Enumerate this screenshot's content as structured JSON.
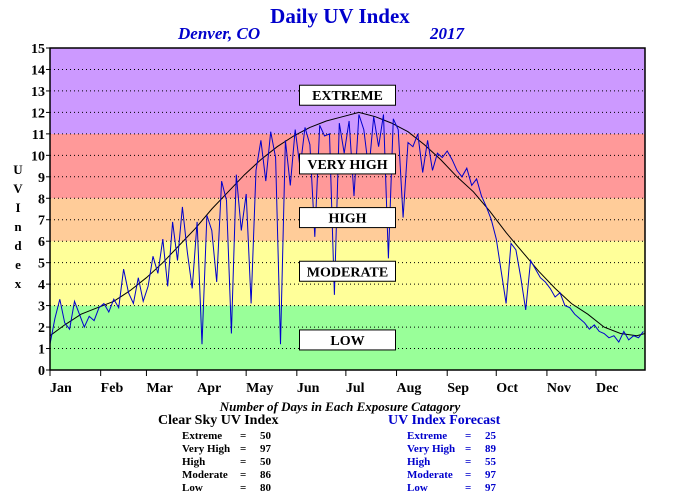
{
  "chart_data": {
    "type": "line",
    "title": "Daily UV Index",
    "subtitle_left": "Denver, CO",
    "subtitle_right": "2017",
    "ylabel": "UV Index",
    "ylim": [
      0,
      15
    ],
    "yticks": [
      0,
      1,
      2,
      3,
      4,
      5,
      6,
      7,
      8,
      9,
      10,
      11,
      12,
      13,
      14,
      15
    ],
    "xlim": [
      1,
      365
    ],
    "month_labels": [
      "Jan",
      "Feb",
      "Mar",
      "Apr",
      "May",
      "Jun",
      "Jul",
      "Aug",
      "Sep",
      "Oct",
      "Nov",
      "Dec"
    ],
    "month_start_day": [
      1,
      32,
      60,
      91,
      121,
      152,
      182,
      213,
      244,
      274,
      305,
      335
    ],
    "grid": "horizontal dotted",
    "bands": [
      {
        "name": "LOW",
        "from": 0,
        "to": 3,
        "color": "#99ff99"
      },
      {
        "name": "MODERATE",
        "from": 3,
        "to": 6,
        "color": "#ffff99"
      },
      {
        "name": "HIGH",
        "from": 6,
        "to": 8,
        "color": "#ffcc99"
      },
      {
        "name": "VERY HIGH",
        "from": 8,
        "to": 11,
        "color": "#ff9999"
      },
      {
        "name": "EXTREME",
        "from": 11,
        "to": 15,
        "color": "#cc99ff"
      }
    ],
    "band_labels": [
      {
        "text": "EXTREME",
        "y": 12.8
      },
      {
        "text": "VERY HIGH",
        "y": 9.6
      },
      {
        "text": "HIGH",
        "y": 7.1
      },
      {
        "text": "MODERATE",
        "y": 4.6
      },
      {
        "text": "LOW",
        "y": 1.4
      }
    ],
    "series": [
      {
        "role": "clear-sky",
        "color": "#000000",
        "x": [
          1,
          10,
          20,
          30,
          40,
          50,
          60,
          70,
          80,
          90,
          100,
          110,
          120,
          130,
          140,
          150,
          160,
          170,
          180,
          190,
          200,
          210,
          220,
          230,
          240,
          250,
          260,
          270,
          280,
          290,
          300,
          310,
          320,
          330,
          340,
          350,
          360,
          365
        ],
        "values": [
          1.6,
          2.1,
          2.6,
          2.9,
          3.2,
          3.7,
          4.3,
          5.0,
          5.8,
          6.6,
          7.5,
          8.3,
          9.1,
          9.8,
          10.4,
          10.9,
          11.3,
          11.6,
          11.8,
          12.0,
          11.8,
          11.5,
          11.1,
          10.5,
          9.8,
          9.0,
          8.3,
          7.4,
          6.4,
          5.5,
          4.6,
          3.8,
          3.1,
          2.6,
          2.0,
          1.7,
          1.6,
          1.7
        ]
      },
      {
        "role": "forecast",
        "color": "#0000cc",
        "x": [
          1,
          4,
          7,
          10,
          13,
          16,
          19,
          22,
          25,
          28,
          31,
          34,
          37,
          40,
          43,
          46,
          49,
          52,
          55,
          58,
          61,
          64,
          67,
          70,
          73,
          76,
          79,
          82,
          85,
          88,
          91,
          94,
          97,
          100,
          103,
          106,
          109,
          112,
          115,
          118,
          121,
          124,
          127,
          130,
          133,
          136,
          139,
          142,
          145,
          148,
          151,
          154,
          157,
          160,
          163,
          166,
          169,
          172,
          175,
          178,
          181,
          184,
          187,
          190,
          193,
          196,
          199,
          202,
          205,
          208,
          211,
          214,
          217,
          220,
          223,
          226,
          229,
          232,
          235,
          238,
          241,
          244,
          247,
          250,
          253,
          256,
          259,
          262,
          265,
          268,
          271,
          274,
          277,
          280,
          283,
          286,
          289,
          292,
          295,
          298,
          301,
          304,
          307,
          310,
          313,
          316,
          319,
          322,
          325,
          328,
          331,
          334,
          337,
          340,
          343,
          346,
          349,
          352,
          355,
          358,
          361,
          364
        ],
        "values": [
          1.2,
          2.4,
          3.3,
          2.2,
          1.9,
          3.2,
          2.6,
          2.0,
          2.5,
          2.3,
          2.9,
          3.1,
          2.7,
          3.3,
          2.9,
          4.7,
          3.6,
          3.1,
          4.3,
          3.2,
          3.9,
          5.3,
          4.5,
          6.1,
          3.9,
          6.9,
          5.1,
          7.6,
          5.5,
          3.8,
          6.9,
          1.2,
          7.2,
          6.5,
          4.1,
          8.8,
          7.9,
          1.7,
          9.1,
          6.5,
          8.2,
          3.1,
          9.3,
          10.7,
          8.8,
          11.1,
          9.9,
          1.2,
          10.7,
          8.6,
          11.2,
          9.4,
          11.3,
          10.5,
          6.2,
          11.4,
          10.9,
          11.0,
          3.5,
          11.5,
          10.1,
          11.6,
          8.1,
          11.9,
          11.2,
          9.3,
          11.8,
          10.4,
          11.9,
          5.2,
          11.7,
          11.2,
          7.1,
          10.6,
          10.4,
          11.0,
          9.2,
          10.7,
          9.3,
          10.1,
          9.9,
          10.2,
          9.8,
          9.3,
          9.0,
          9.4,
          8.6,
          8.9,
          8.1,
          7.6,
          7.0,
          6.1,
          4.6,
          3.1,
          5.9,
          5.6,
          4.3,
          2.8,
          5.1,
          4.7,
          4.3,
          4.1,
          3.8,
          3.4,
          3.6,
          3.0,
          2.9,
          2.6,
          2.4,
          2.2,
          1.9,
          2.1,
          1.8,
          1.7,
          1.5,
          1.6,
          1.3,
          1.8,
          1.4,
          1.6,
          1.5,
          1.8
        ]
      }
    ]
  },
  "stats": {
    "title": "Number of Days in Each Exposure Catagory",
    "clear_sky": {
      "title": "Clear Sky UV Index",
      "rows": [
        {
          "label": "Extreme",
          "value": "50"
        },
        {
          "label": "Very High",
          "value": "97"
        },
        {
          "label": "High",
          "value": "50"
        },
        {
          "label": "Moderate",
          "value": "86"
        },
        {
          "label": "Low",
          "value": "80"
        }
      ]
    },
    "forecast": {
      "title": "UV Index Forecast",
      "rows": [
        {
          "label": "Extreme",
          "value": "25"
        },
        {
          "label": "Very High",
          "value": "89"
        },
        {
          "label": "High",
          "value": "55"
        },
        {
          "label": "Moderate",
          "value": "97"
        },
        {
          "label": "Low",
          "value": "97"
        }
      ]
    }
  }
}
